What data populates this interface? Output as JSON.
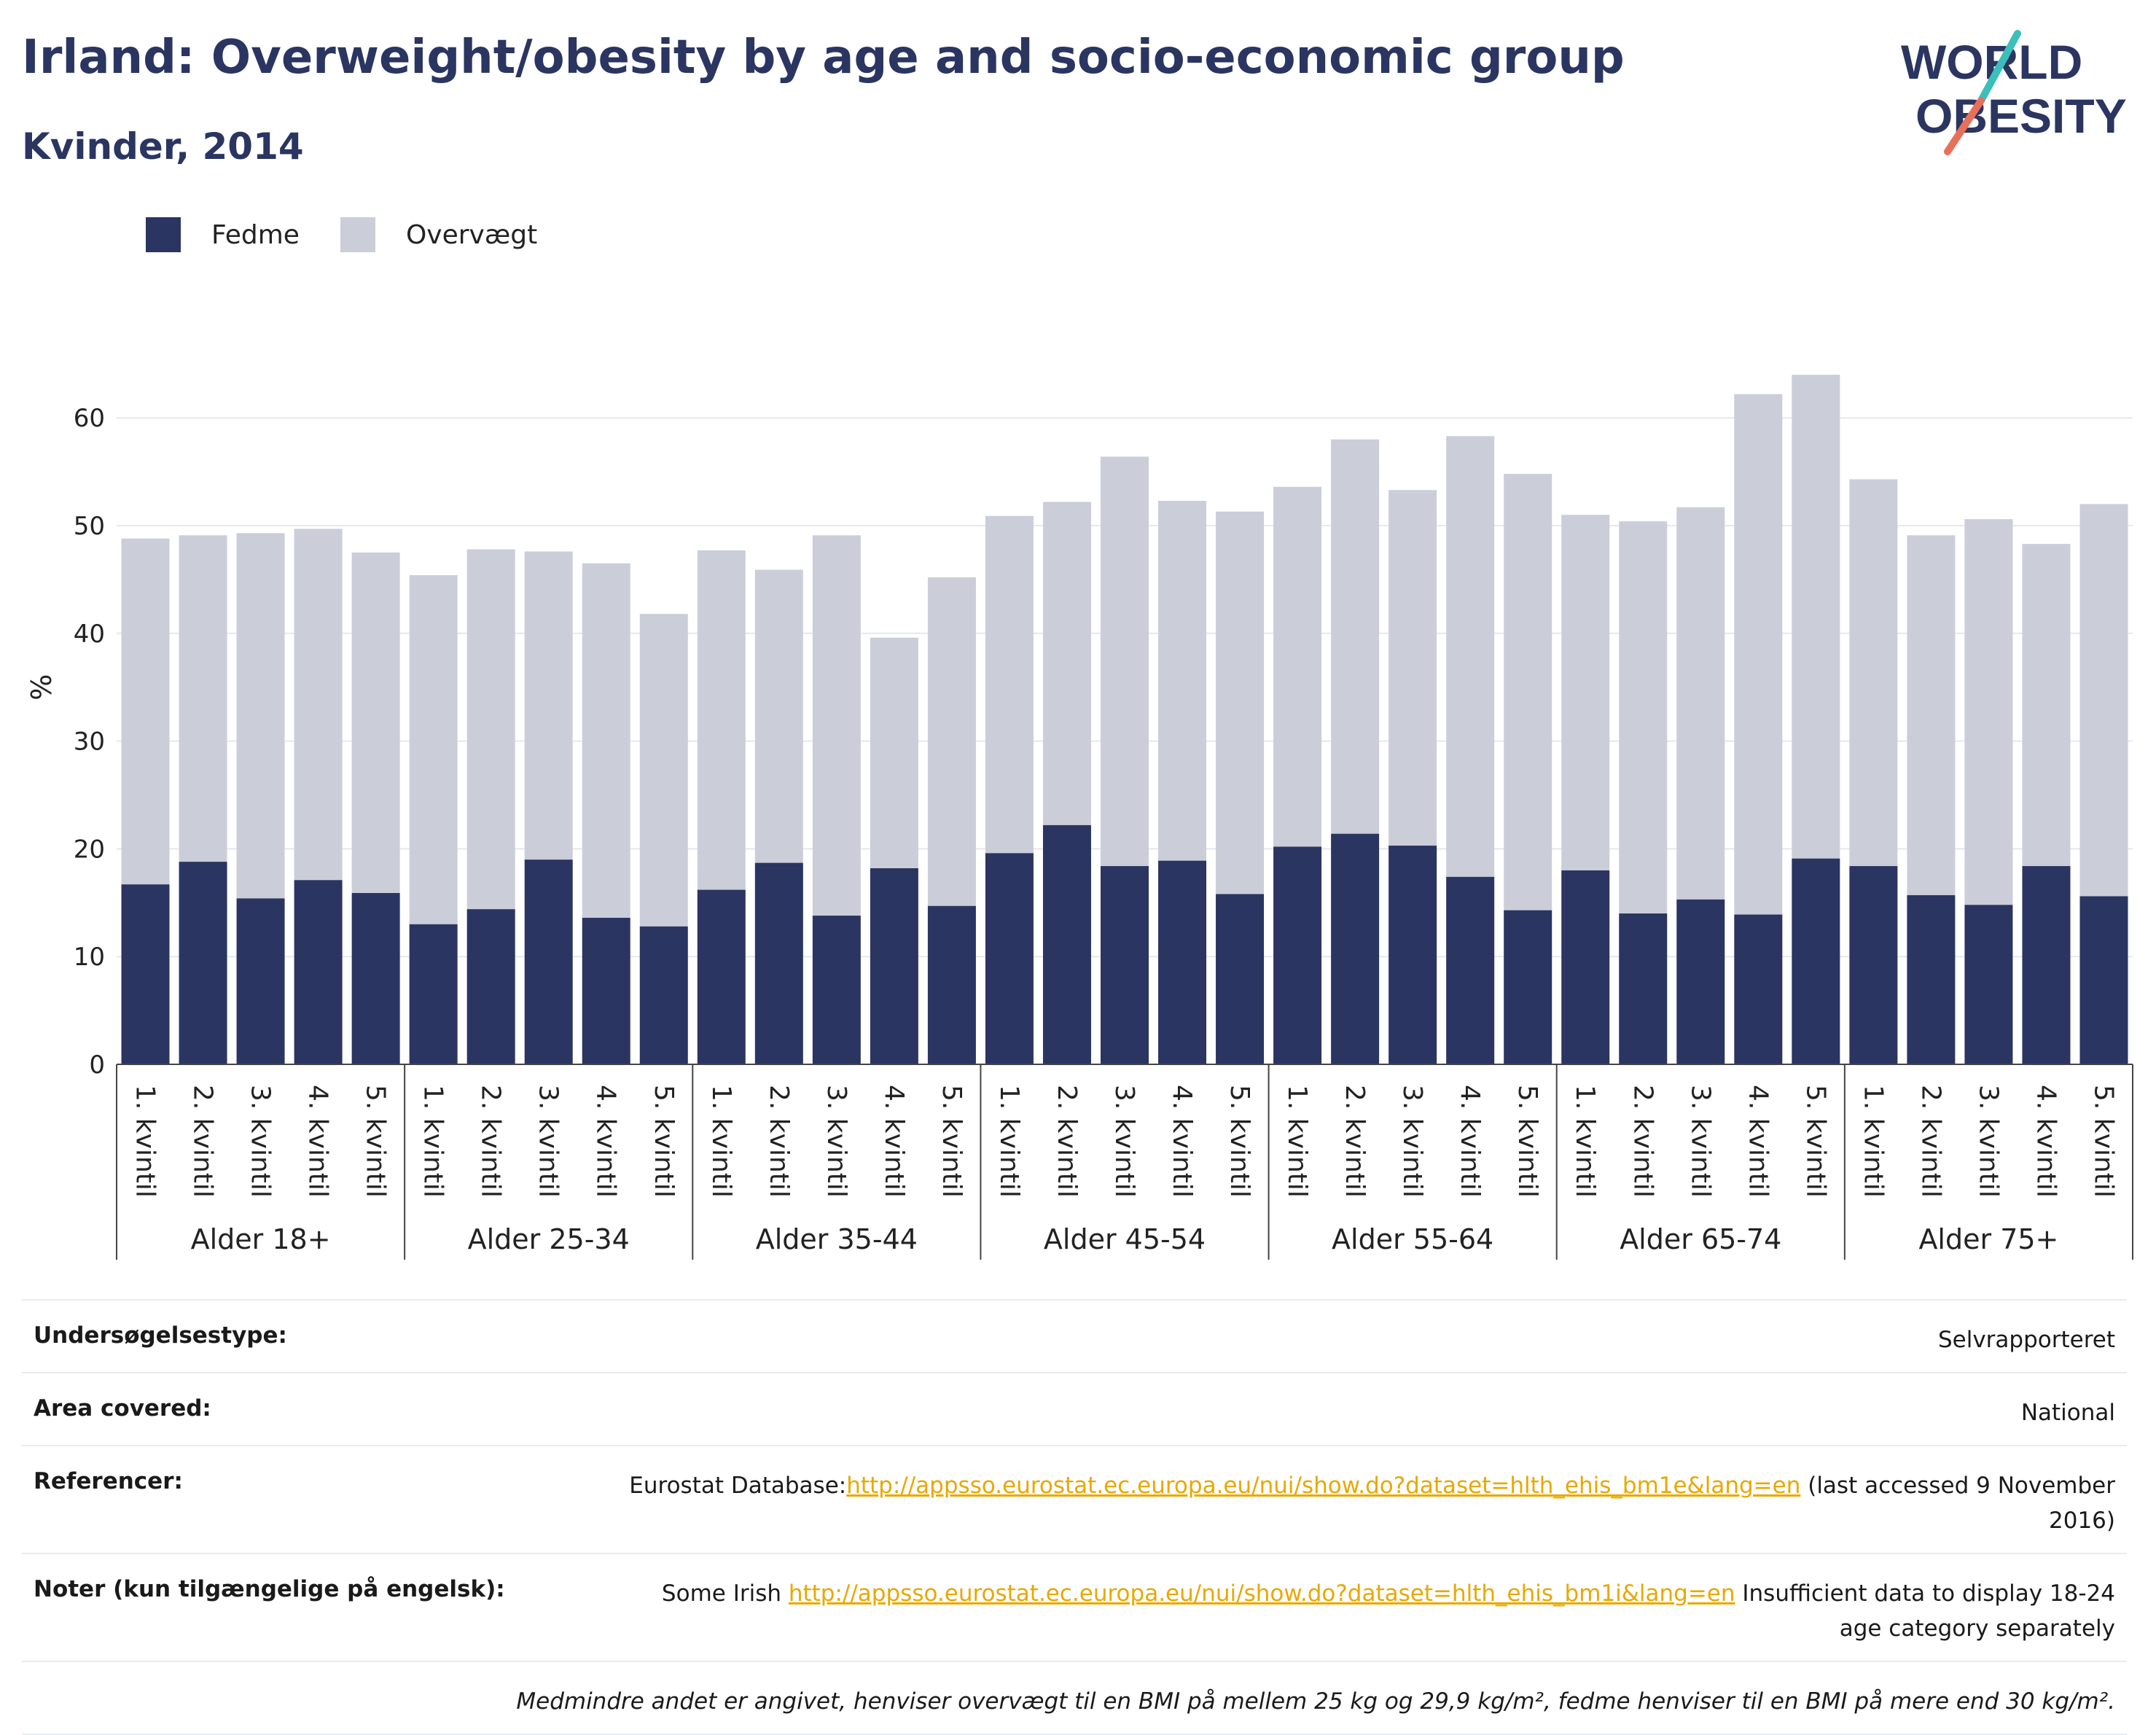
{
  "header": {
    "title": "Irland: Overweight/obesity by age and socio-economic group",
    "subtitle": "Kvinder, 2014"
  },
  "logo": {
    "line1": "WORLD",
    "line2": "OBESITY",
    "icon": "world-obesity-logo"
  },
  "colors": {
    "fedme": "#2a3561",
    "overvaegt": "#cbcdd9",
    "accent_teal": "#3bbfba",
    "accent_coral": "#e8705a",
    "link": "#e8a800"
  },
  "legend": [
    {
      "label": "Fedme",
      "color": "#2a3561"
    },
    {
      "label": "Overvægt",
      "color": "#cbcdd9"
    }
  ],
  "chart_data": {
    "type": "bar",
    "stacked": true,
    "ylabel": "%",
    "ylim": [
      0,
      70
    ],
    "yticks": [
      0,
      10,
      20,
      30,
      40,
      50,
      60
    ],
    "grid": true,
    "legend_position": "top-left",
    "groups": [
      "Alder 18+",
      "Alder 25-34",
      "Alder 35-44",
      "Alder 45-54",
      "Alder 55-64",
      "Alder 65-74",
      "Alder 75+"
    ],
    "categories": [
      "1. kvintil",
      "2. kvintil",
      "3. kvintil",
      "4. kvintil",
      "5. kvintil"
    ],
    "series": [
      {
        "name": "Fedme",
        "values": [
          [
            16.7,
            18.8,
            15.4,
            17.1,
            15.9
          ],
          [
            13.0,
            14.4,
            19.0,
            13.6,
            12.8
          ],
          [
            16.2,
            18.7,
            13.8,
            18.2,
            14.7
          ],
          [
            19.6,
            22.2,
            18.4,
            18.9,
            15.8
          ],
          [
            20.2,
            21.4,
            20.3,
            17.4,
            14.3
          ],
          [
            18.0,
            14.0,
            15.3,
            13.9,
            19.1
          ],
          [
            18.4,
            15.7,
            14.8,
            18.4,
            15.6
          ]
        ]
      },
      {
        "name": "Overvægt",
        "values": [
          [
            32.1,
            30.3,
            33.9,
            32.6,
            31.6
          ],
          [
            32.4,
            33.4,
            28.6,
            32.9,
            29.0
          ],
          [
            31.5,
            27.2,
            35.3,
            21.4,
            30.5
          ],
          [
            31.3,
            30.0,
            38.0,
            33.4,
            35.5
          ],
          [
            33.4,
            36.6,
            33.0,
            40.9,
            40.5
          ],
          [
            33.0,
            36.4,
            36.4,
            48.3,
            44.9
          ],
          [
            35.9,
            33.4,
            35.8,
            29.9,
            36.4
          ]
        ]
      }
    ]
  },
  "info": {
    "survey_type": {
      "label": "Undersøgelsestype:",
      "value": "Selvrapporteret"
    },
    "area": {
      "label": "Area covered:",
      "value": "National"
    },
    "references": {
      "label": "Referencer:",
      "prefix": "Eurostat Database:",
      "link": "http://appsso.eurostat.ec.europa.eu/nui/show.do?dataset=hlth_ehis_bm1e&lang=en",
      "suffix": " (last accessed 9 November 2016)"
    },
    "notes": {
      "label": "Noter (kun tilgængelige på engelsk):",
      "prefix": "Some Irish ",
      "link": "http://appsso.eurostat.ec.europa.eu/nui/show.do?dataset=hlth_ehis_bm1i&lang=en",
      "suffix": " Insufficient data to display 18-24 age category separately"
    },
    "footnote": "Medmindre andet er angivet, henviser overvægt til en BMI på mellem 25 kg og 29,9 kg/m², fedme henviser til en BMI på mere end 30 kg/m²."
  }
}
